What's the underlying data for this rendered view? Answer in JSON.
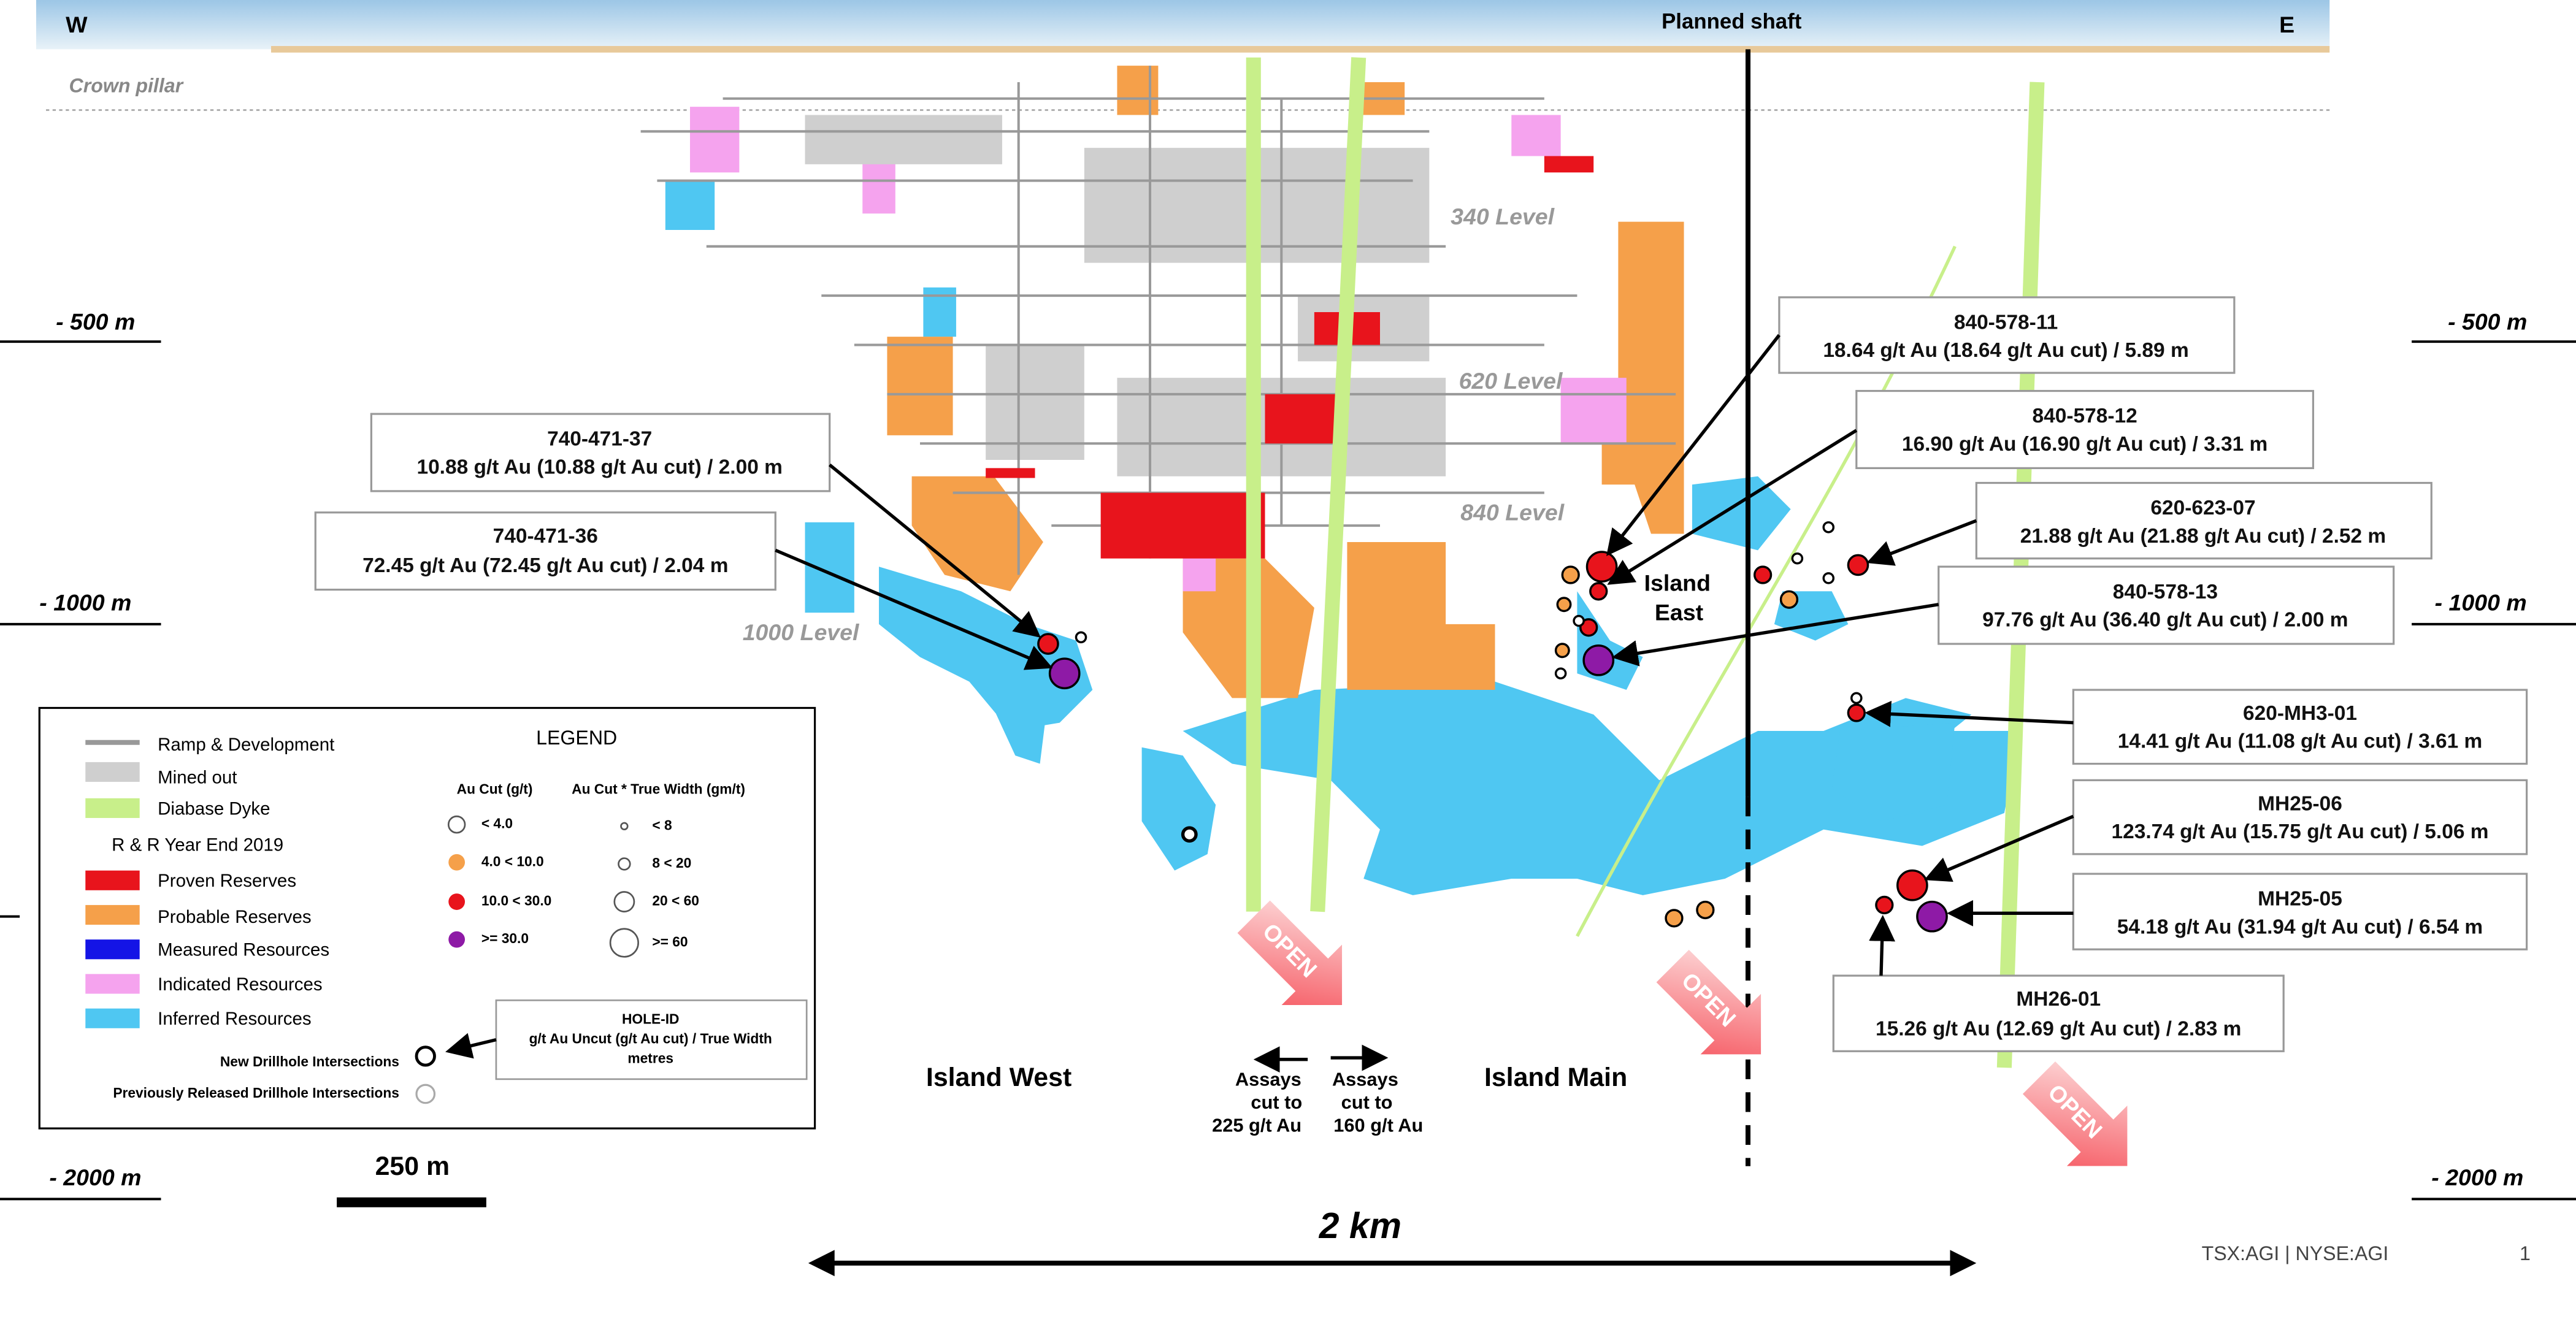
{
  "header": {
    "west": "W",
    "east": "E",
    "shaft": "Planned shaft",
    "crown_pillar": "Crown pillar"
  },
  "depths": [
    "- 500 m",
    "- 500 m",
    "- 1000 m",
    "- 1000 m",
    "- 2000 m",
    "- 2000 m"
  ],
  "levels": [
    "340 Level",
    "620 Level",
    "840 Level",
    "1000 Level"
  ],
  "zones": {
    "west": "Island West",
    "main": "Island Main",
    "east": [
      "Island",
      "East"
    ]
  },
  "callouts": [
    {
      "hole": "840-578-11",
      "text": "18.64 g/t Au (18.64 g/t Au cut) / 5.89 m"
    },
    {
      "hole": "840-578-12",
      "text": "16.90 g/t Au (16.90 g/t Au cut) / 3.31 m"
    },
    {
      "hole": "620-623-07",
      "text": "21.88 g/t Au (21.88 g/t Au cut) / 2.52 m"
    },
    {
      "hole": "840-578-13",
      "text": "97.76 g/t Au (36.40 g/t Au cut) / 2.00 m"
    },
    {
      "hole": "620-MH3-01",
      "text": "14.41 g/t Au (11.08 g/t Au cut) / 3.61 m"
    },
    {
      "hole": "MH25-06",
      "text": "123.74 g/t Au (15.75 g/t Au cut) / 5.06 m"
    },
    {
      "hole": "MH25-05",
      "text": "54.18 g/t Au (31.94 g/t Au cut) / 6.54 m"
    },
    {
      "hole": "MH26-01",
      "text": "15.26 g/t Au (12.69 g/t Au cut) / 2.83 m"
    },
    {
      "hole": "740-471-37",
      "text": "10.88 g/t Au (10.88 g/t Au cut) / 2.00 m"
    },
    {
      "hole": "740-471-36",
      "text": "72.45 g/t Au (72.45 g/t Au cut) / 2.04 m"
    }
  ],
  "assays": {
    "west": [
      "Assays",
      "cut to",
      "225 g/t Au"
    ],
    "east": [
      "Assays",
      "cut to",
      "160 g/t Au"
    ]
  },
  "open": [
    "OPEN",
    "OPEN",
    "OPEN"
  ],
  "scale": {
    "bar": "250 m",
    "span": "2 km"
  },
  "footer": {
    "ticker": "TSX:AGI | NYSE:AGI",
    "page": "1"
  },
  "legend": {
    "title": "LEGEND",
    "items": [
      "Ramp & Development",
      "Mined out",
      "Diabase Dyke",
      "R & R Year End 2019",
      "Proven Reserves",
      "Probable Reserves",
      "Measured Resources",
      "Indicated Resources",
      "Inferred Resources"
    ],
    "au_cut_title": "Au Cut (g/t)",
    "au_cut": [
      "< 4.0",
      "4.0 < 10.0",
      "10.0 < 30.0",
      ">= 30.0"
    ],
    "width_title": "Au Cut * True Width (gm/t)",
    "width": [
      "< 8",
      "8 < 20",
      "20 < 60",
      ">= 60"
    ],
    "hole_box": [
      "HOLE-ID",
      "g/t Au Uncut (g/t Au cut) / True Width",
      "metres"
    ],
    "new": "New Drillhole Intersections",
    "previous": "Previously Released Drillhole Intersections"
  }
}
